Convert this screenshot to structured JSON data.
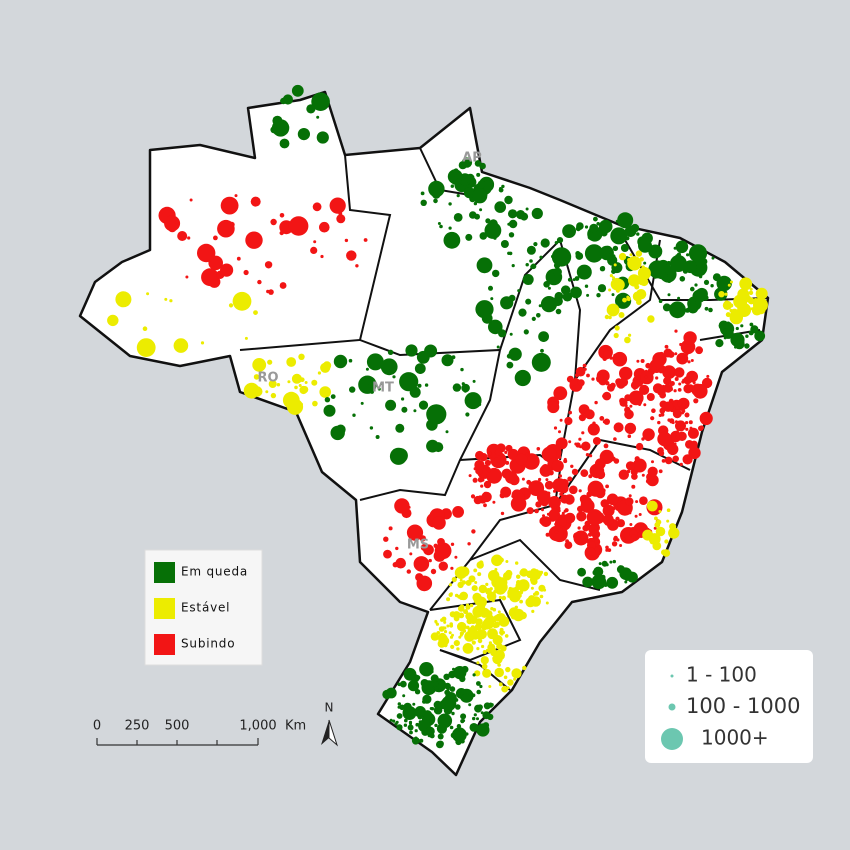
{
  "legend": {
    "items": [
      {
        "label": "Em queda",
        "color": "#067006"
      },
      {
        "label": "Estável",
        "color": "#ecec00"
      },
      {
        "label": "Subindo",
        "color": "#f21515"
      }
    ]
  },
  "size_legend": {
    "items": [
      "1 - 100",
      "100 - 1000",
      "1000+"
    ],
    "color": "#6cc7b0"
  },
  "scale_bar": {
    "ticks": [
      "0",
      "250",
      "500",
      "1,000"
    ],
    "unit": "Km"
  },
  "north": "N",
  "state_labels": [
    "AP",
    "RO",
    "MT",
    "MS"
  ]
}
